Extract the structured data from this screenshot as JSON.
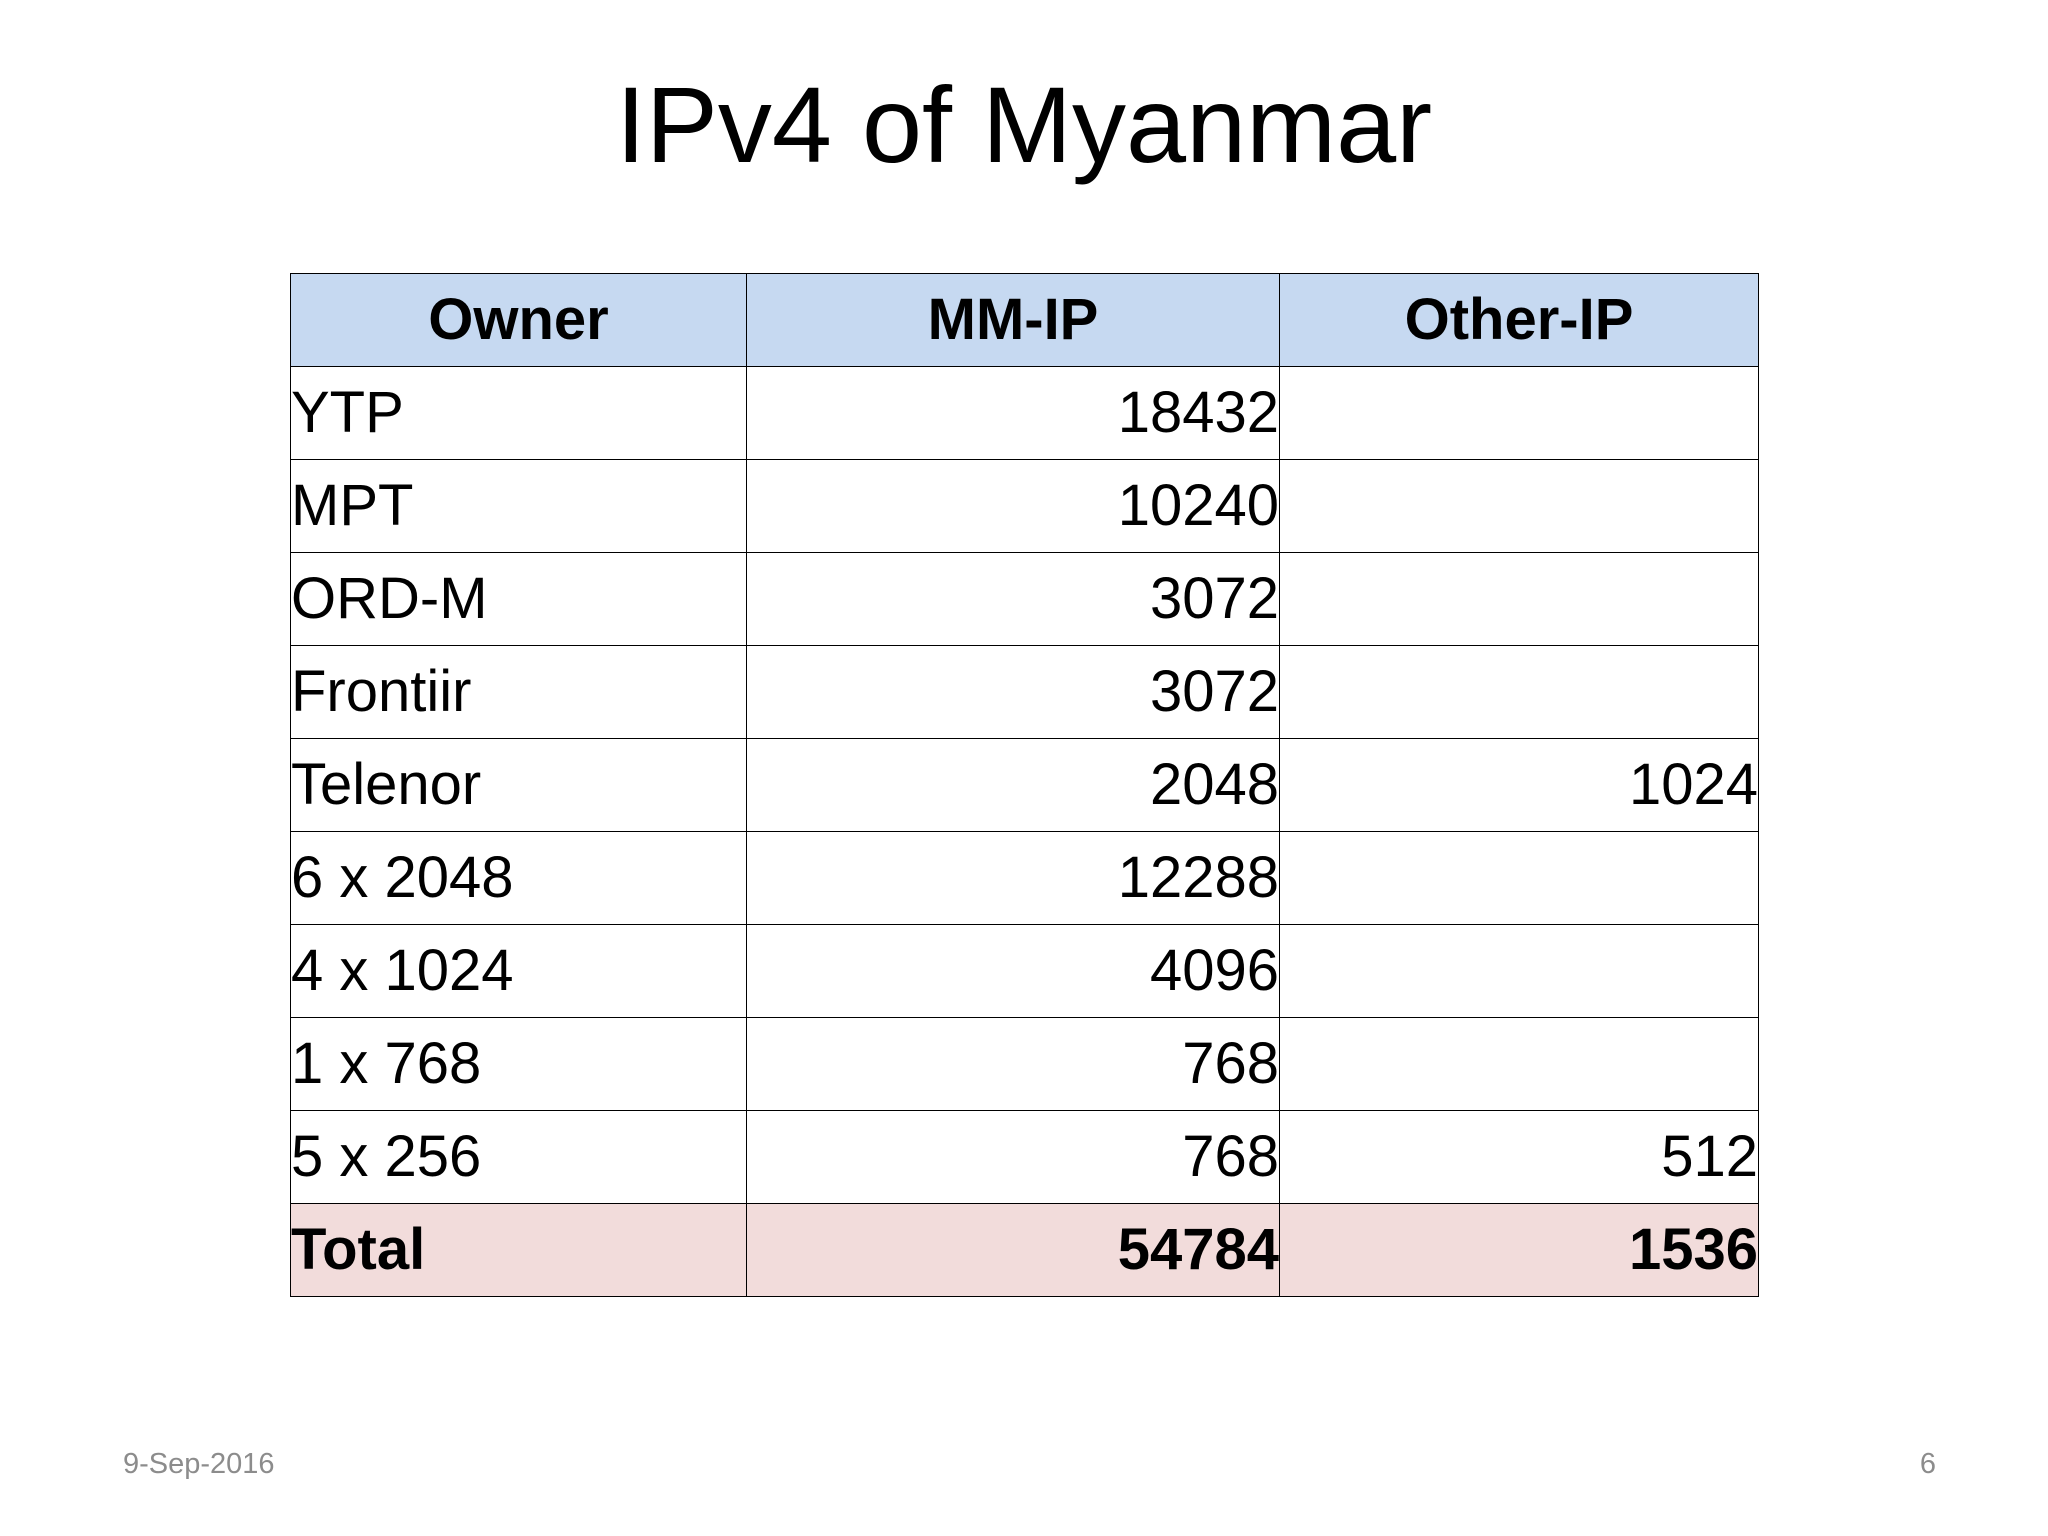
{
  "title": "IPv4 of Myanmar",
  "table": {
    "header": [
      "Owner",
      "MM-IP",
      "Other-IP"
    ],
    "rows": [
      [
        "YTP",
        18432,
        null
      ],
      [
        "MPT",
        10240,
        null
      ],
      [
        "ORD-M",
        3072,
        null
      ],
      [
        "Frontiir",
        3072,
        null
      ],
      [
        "Telenor",
        2048,
        1024
      ],
      [
        "6 x 2048",
        12288,
        null
      ],
      [
        "4 x 1024",
        4096,
        null
      ],
      [
        "1 x 768",
        768,
        null
      ],
      [
        "5 x 256",
        768,
        512
      ]
    ],
    "total": [
      "Total",
      54784,
      1536
    ]
  },
  "footer": {
    "date": "9-Sep-2016",
    "page": "6"
  }
}
